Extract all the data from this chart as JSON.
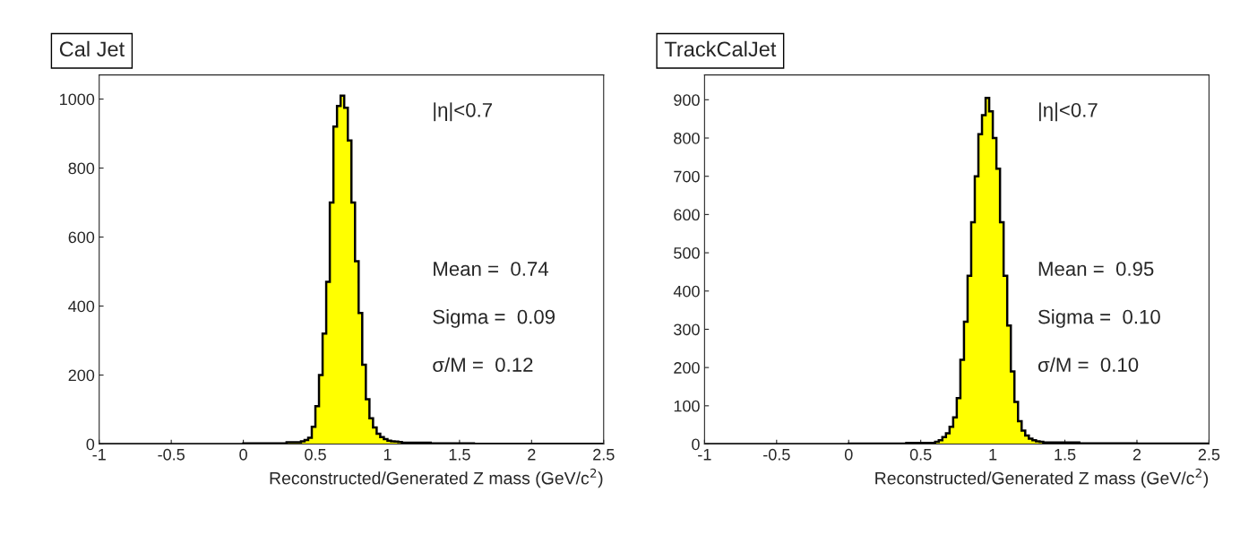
{
  "chart_data": [
    {
      "type": "histogram",
      "title": "Cal Jet",
      "xlabel": "Reconstructed/Generated Z mass (GeV/c$^{2}$)",
      "bins": [
        -1,
        0,
        0.3,
        0.4,
        0.425,
        0.45,
        0.475,
        0.5,
        0.525,
        0.55,
        0.575,
        0.6,
        0.625,
        0.65,
        0.675,
        0.7,
        0.725,
        0.75,
        0.775,
        0.8,
        0.825,
        0.85,
        0.875,
        0.9,
        0.925,
        0.95,
        0.975,
        1.0,
        1.025,
        1.05,
        1.075,
        1.1,
        1.3,
        1.6,
        2.5
      ],
      "values": [
        0,
        2,
        5,
        8,
        12,
        18,
        50,
        110,
        200,
        320,
        470,
        700,
        920,
        980,
        1010,
        975,
        880,
        700,
        530,
        380,
        230,
        130,
        75,
        48,
        30,
        20,
        14,
        10,
        8,
        7,
        6,
        4,
        2,
        1
      ],
      "color": "#ffff00",
      "xlim": [
        -1,
        2.5
      ],
      "xticks": [
        -1,
        -0.5,
        0,
        0.5,
        1,
        1.5,
        2,
        2.5
      ],
      "ylim": [
        0,
        1070
      ],
      "yticks": [
        0,
        200,
        400,
        600,
        800,
        1000
      ],
      "grid": false,
      "legend": false,
      "annotations": [
        "|η|<0.7",
        "Mean =  0.74",
        "Sigma =  0.09",
        "σ/M =  0.12"
      ]
    },
    {
      "type": "histogram",
      "title": "TrackCalJet",
      "xlabel": "Reconstructed/Generated Z mass (GeV/c$^{2}$)",
      "bins": [
        -1,
        0,
        0.4,
        0.6,
        0.625,
        0.65,
        0.675,
        0.7,
        0.725,
        0.75,
        0.775,
        0.8,
        0.825,
        0.85,
        0.875,
        0.9,
        0.925,
        0.95,
        0.975,
        1.0,
        1.025,
        1.05,
        1.075,
        1.1,
        1.125,
        1.15,
        1.175,
        1.2,
        1.225,
        1.25,
        1.275,
        1.3,
        1.325,
        1.35,
        1.6,
        2.0,
        2.5
      ],
      "values": [
        0,
        1,
        3,
        6,
        10,
        18,
        28,
        45,
        70,
        120,
        220,
        320,
        440,
        580,
        700,
        810,
        860,
        905,
        870,
        800,
        720,
        580,
        440,
        310,
        190,
        110,
        60,
        35,
        22,
        14,
        10,
        7,
        6,
        4,
        2,
        1
      ],
      "color": "#ffff00",
      "xlim": [
        -1,
        2.5
      ],
      "xticks": [
        -1,
        -0.5,
        0,
        0.5,
        1,
        1.5,
        2,
        2.5
      ],
      "ylim": [
        0,
        965
      ],
      "yticks": [
        0,
        100,
        200,
        300,
        400,
        500,
        600,
        700,
        800,
        900
      ],
      "grid": false,
      "legend": false,
      "annotations": [
        "|η|<0.7",
        "Mean =  0.95",
        "Sigma =  0.10",
        "σ/M =  0.10"
      ]
    }
  ]
}
